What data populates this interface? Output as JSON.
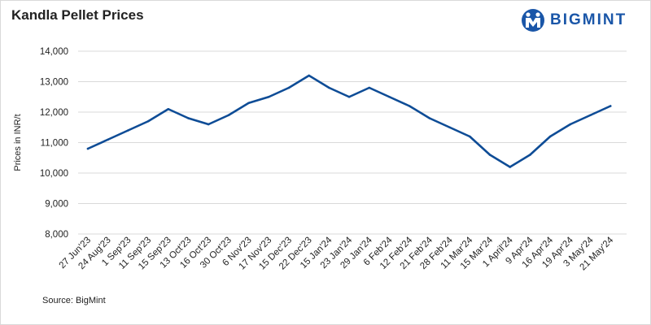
{
  "header": {
    "title": "Kandla Pellet Prices"
  },
  "logo": {
    "text": "BIGMINT",
    "icon": "bigmint-logo-icon",
    "color": "#1a56a8"
  },
  "footer": {
    "source": "Source: BigMint"
  },
  "chart_data": {
    "type": "line",
    "title": "Kandla Pellet Prices",
    "xlabel": "",
    "ylabel": "Prices in INR/t",
    "ylim": [
      8000,
      14000
    ],
    "yticks": [
      8000,
      9000,
      10000,
      11000,
      12000,
      13000,
      14000
    ],
    "ytick_labels": [
      "8,000",
      "9,000",
      "10,000",
      "11,000",
      "12,000",
      "13,000",
      "14,000"
    ],
    "grid": true,
    "legend": "none",
    "categories": [
      "27 Jun'23",
      "24 Aug'23",
      "1 Sep'23",
      "11 Sep'23",
      "15 Sep'23",
      "13 Oct'23",
      "16 Oct'23",
      "30 Oct'23",
      "6 Nov'23",
      "17 Nov'23",
      "15 Dec'23",
      "22 Dec'23",
      "15 Jan'24",
      "23 Jan'24",
      "29 Jan'24",
      "6 Feb'24",
      "12 Feb'24",
      "21 Feb'24",
      "28 Feb'24",
      "11 Mar'24",
      "15 Mar'24",
      "1 April'24",
      "9 Apr'24",
      "16 Apr'24",
      "19 Apr'24",
      "3 May'24",
      "21 May'24"
    ],
    "series": [
      {
        "values": [
          10800,
          11100,
          11400,
          11700,
          12100,
          11800,
          11600,
          11900,
          12300,
          12500,
          12800,
          13200,
          12800,
          12500,
          12800,
          12500,
          12200,
          11800,
          11500,
          11200,
          10600,
          10200,
          10600,
          11200,
          11600,
          11900,
          12200
        ],
        "color": "#0e4c96"
      }
    ]
  }
}
